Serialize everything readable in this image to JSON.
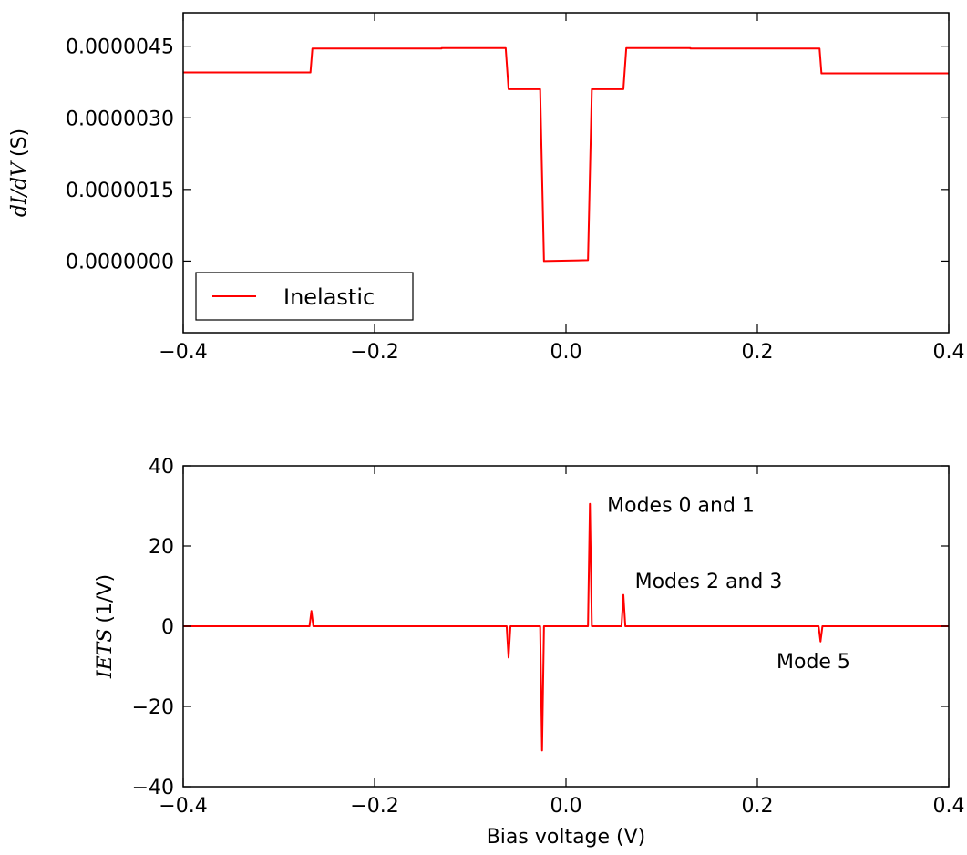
{
  "chart_data": [
    {
      "type": "line",
      "xlim": [
        -0.4,
        0.4
      ],
      "ylim": [
        -1.5e-06,
        5.2e-06
      ],
      "x_ticks": [
        "−0.4",
        "−0.2",
        "0.0",
        "0.2",
        "0.4"
      ],
      "x_tick_values": [
        -0.4,
        -0.2,
        0.0,
        0.2,
        0.4
      ],
      "y_ticks": [
        "0.0000000",
        "0.0000015",
        "0.0000030",
        "0.0000045"
      ],
      "y_tick_values": [
        0.0,
        1.5e-06,
        3e-06,
        4.5e-06
      ],
      "ylabel_math": "dI/dV",
      "ylabel_unit": "(S)",
      "xlabel": "",
      "grid": false,
      "legend_position": "lower-left",
      "series": [
        {
          "name": "Inelastic",
          "color": "#ff0000",
          "points": [
            [
              -0.4,
              3.95e-06
            ],
            [
              -0.267,
              3.95e-06
            ],
            [
              -0.265,
              4.45e-06
            ],
            [
              -0.13,
              4.45e-06
            ],
            [
              -0.13,
              4.46e-06
            ],
            [
              -0.063,
              4.46e-06
            ],
            [
              -0.06,
              3.6e-06
            ],
            [
              -0.027,
              3.6e-06
            ],
            [
              -0.023,
              0.0
            ],
            [
              0.023,
              2e-08
            ],
            [
              0.027,
              3.6e-06
            ],
            [
              0.06,
              3.6e-06
            ],
            [
              0.063,
              4.46e-06
            ],
            [
              0.13,
              4.46e-06
            ],
            [
              0.13,
              4.45e-06
            ],
            [
              0.265,
              4.45e-06
            ],
            [
              0.267,
              3.93e-06
            ],
            [
              0.4,
              3.93e-06
            ]
          ]
        }
      ]
    },
    {
      "type": "line",
      "xlim": [
        -0.4,
        0.4
      ],
      "ylim": [
        -40,
        40
      ],
      "x_ticks": [
        "−0.4",
        "−0.2",
        "0.0",
        "0.2",
        "0.4"
      ],
      "x_tick_values": [
        -0.4,
        -0.2,
        0.0,
        0.2,
        0.4
      ],
      "y_ticks": [
        "−40",
        "−20",
        "0",
        "20",
        "40"
      ],
      "y_tick_values": [
        -40,
        -20,
        0,
        20,
        40
      ],
      "ylabel_math": "IETS",
      "ylabel_unit": "(1/V)",
      "xlabel": "Bias voltage (V)",
      "grid": false,
      "series": [
        {
          "name": "",
          "color": "#ff0000",
          "points": [
            [
              -0.4,
              0
            ],
            [
              -0.268,
              0
            ],
            [
              -0.266,
              3.8
            ],
            [
              -0.264,
              0
            ],
            [
              -0.062,
              0
            ],
            [
              -0.06,
              -7.8
            ],
            [
              -0.058,
              0
            ],
            [
              -0.027,
              0
            ],
            [
              -0.025,
              -31
            ],
            [
              -0.023,
              0
            ],
            [
              0.023,
              0
            ],
            [
              0.025,
              30.5
            ],
            [
              0.027,
              0
            ],
            [
              0.058,
              0
            ],
            [
              0.06,
              7.8
            ],
            [
              0.062,
              0
            ],
            [
              0.264,
              0
            ],
            [
              0.266,
              -3.8
            ],
            [
              0.268,
              0
            ],
            [
              0.4,
              0
            ]
          ]
        }
      ],
      "annotations": [
        {
          "text": "Modes 0 and 1",
          "x": 0.043,
          "y": 28.5
        },
        {
          "text": "Modes 2 and 3",
          "x": 0.072,
          "y": 9.5
        },
        {
          "text": "Mode 5",
          "x": 0.22,
          "y": -10.5
        }
      ]
    }
  ]
}
